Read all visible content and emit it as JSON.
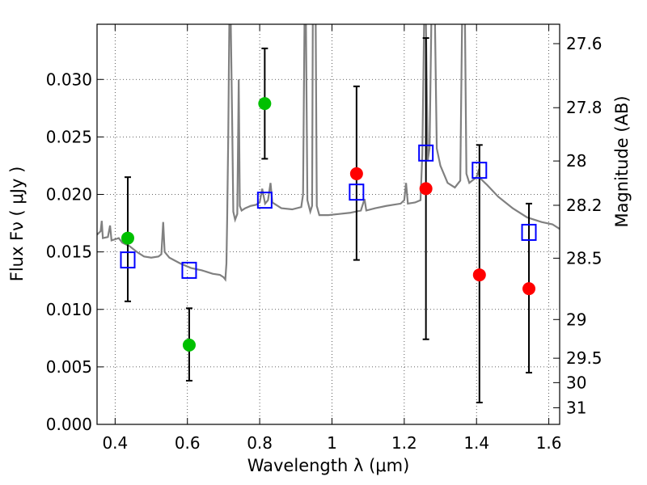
{
  "chart_data": {
    "type": "scatter",
    "xlabel": "Wavelength  λ (μm)",
    "ylabel": "Flux  Fν  ( μJy )",
    "y2label": "Magnitude (AB)",
    "xlim": [
      0.35,
      1.63
    ],
    "ylim": [
      0.0,
      0.0348
    ],
    "grid": true,
    "x_ticks": [
      {
        "value": 0.4,
        "label": "0.4"
      },
      {
        "value": 0.6,
        "label": "0.6"
      },
      {
        "value": 0.8,
        "label": "0.8"
      },
      {
        "value": 1.0,
        "label": "1"
      },
      {
        "value": 1.2,
        "label": "1.2"
      },
      {
        "value": 1.4,
        "label": "1.4"
      },
      {
        "value": 1.6,
        "label": "1.6"
      }
    ],
    "y_ticks": [
      {
        "value": 0.0,
        "label": "0.000"
      },
      {
        "value": 0.005,
        "label": "0.005"
      },
      {
        "value": 0.01,
        "label": "0.010"
      },
      {
        "value": 0.015,
        "label": "0.015"
      },
      {
        "value": 0.02,
        "label": "0.020"
      },
      {
        "value": 0.025,
        "label": "0.025"
      },
      {
        "value": 0.03,
        "label": "0.030"
      }
    ],
    "y2_ticks": [
      {
        "value": 27.6,
        "label": "27.6"
      },
      {
        "value": 27.8,
        "label": "27.8"
      },
      {
        "value": 28.0,
        "label": "28"
      },
      {
        "value": 28.2,
        "label": "28.2"
      },
      {
        "value": 28.5,
        "label": "28.5"
      },
      {
        "value": 29.0,
        "label": "29"
      },
      {
        "value": 29.5,
        "label": "29.5"
      },
      {
        "value": 30.0,
        "label": "30"
      },
      {
        "value": 31.0,
        "label": "31"
      }
    ],
    "colors": {
      "spectrum": "#808080",
      "green": "#00c000",
      "red": "#ff0000",
      "model": "#0000ff",
      "error": "#000000"
    },
    "series": [
      {
        "marker": "circle",
        "color": "green",
        "points": [
          {
            "x": 0.435,
            "y": 0.0162,
            "ylo": 0.0107,
            "yhi": 0.0215
          },
          {
            "x": 0.605,
            "y": 0.0069,
            "ylo": 0.0038,
            "yhi": 0.0101
          },
          {
            "x": 0.814,
            "y": 0.0279,
            "ylo": 0.0231,
            "yhi": 0.0327
          }
        ]
      },
      {
        "marker": "circle",
        "color": "red",
        "points": [
          {
            "x": 1.068,
            "y": 0.0218,
            "ylo": 0.0143,
            "yhi": 0.0294
          },
          {
            "x": 1.26,
            "y": 0.0205,
            "ylo": 0.0074,
            "yhi": 0.0336
          },
          {
            "x": 1.408,
            "y": 0.013,
            "ylo": 0.0019,
            "yhi": 0.0243
          },
          {
            "x": 1.545,
            "y": 0.0118,
            "ylo": 0.0045,
            "yhi": 0.0192
          }
        ]
      },
      {
        "marker": "open-square",
        "color": "model",
        "points": [
          {
            "x": 0.435,
            "y": 0.0143
          },
          {
            "x": 0.605,
            "y": 0.0134
          },
          {
            "x": 0.814,
            "y": 0.0195
          },
          {
            "x": 1.068,
            "y": 0.0202
          },
          {
            "x": 1.26,
            "y": 0.0236
          },
          {
            "x": 1.408,
            "y": 0.0221
          },
          {
            "x": 1.545,
            "y": 0.0167
          }
        ]
      }
    ],
    "spectrum": [
      [
        0.35,
        0.0165
      ],
      [
        0.36,
        0.0168
      ],
      [
        0.363,
        0.0177
      ],
      [
        0.366,
        0.0162
      ],
      [
        0.38,
        0.0163
      ],
      [
        0.386,
        0.0173
      ],
      [
        0.39,
        0.016
      ],
      [
        0.4,
        0.0161
      ],
      [
        0.41,
        0.0162
      ],
      [
        0.42,
        0.0158
      ],
      [
        0.44,
        0.0155
      ],
      [
        0.46,
        0.015
      ],
      [
        0.48,
        0.0146
      ],
      [
        0.5,
        0.0145
      ],
      [
        0.52,
        0.0146
      ],
      [
        0.528,
        0.0148
      ],
      [
        0.533,
        0.0176
      ],
      [
        0.537,
        0.015
      ],
      [
        0.55,
        0.0145
      ],
      [
        0.58,
        0.014
      ],
      [
        0.61,
        0.0136
      ],
      [
        0.64,
        0.0134
      ],
      [
        0.67,
        0.0131
      ],
      [
        0.69,
        0.013
      ],
      [
        0.7,
        0.0128
      ],
      [
        0.705,
        0.0126
      ],
      [
        0.708,
        0.014
      ],
      [
        0.71,
        0.0178
      ],
      [
        0.713,
        0.025
      ],
      [
        0.716,
        0.035
      ],
      [
        0.72,
        0.035
      ],
      [
        0.724,
        0.026
      ],
      [
        0.727,
        0.0185
      ],
      [
        0.732,
        0.0178
      ],
      [
        0.738,
        0.0183
      ],
      [
        0.742,
        0.03
      ],
      [
        0.745,
        0.019
      ],
      [
        0.75,
        0.0186
      ],
      [
        0.76,
        0.0188
      ],
      [
        0.775,
        0.019
      ],
      [
        0.79,
        0.0191
      ],
      [
        0.8,
        0.0193
      ],
      [
        0.807,
        0.0205
      ],
      [
        0.815,
        0.0192
      ],
      [
        0.823,
        0.0195
      ],
      [
        0.83,
        0.021
      ],
      [
        0.835,
        0.0193
      ],
      [
        0.86,
        0.0188
      ],
      [
        0.89,
        0.0187
      ],
      [
        0.915,
        0.0189
      ],
      [
        0.92,
        0.02
      ],
      [
        0.924,
        0.035
      ],
      [
        0.928,
        0.035
      ],
      [
        0.932,
        0.0195
      ],
      [
        0.94,
        0.0185
      ],
      [
        0.945,
        0.019
      ],
      [
        0.947,
        0.035
      ],
      [
        0.95,
        0.035
      ],
      [
        0.952,
        0.035
      ],
      [
        0.955,
        0.035
      ],
      [
        0.958,
        0.019
      ],
      [
        0.965,
        0.0182
      ],
      [
        0.99,
        0.0182
      ],
      [
        1.02,
        0.0183
      ],
      [
        1.05,
        0.0184
      ],
      [
        1.08,
        0.0186
      ],
      [
        1.09,
        0.0196
      ],
      [
        1.095,
        0.0186
      ],
      [
        1.12,
        0.0188
      ],
      [
        1.15,
        0.019
      ],
      [
        1.17,
        0.0191
      ],
      [
        1.19,
        0.0192
      ],
      [
        1.2,
        0.0195
      ],
      [
        1.205,
        0.021
      ],
      [
        1.21,
        0.0192
      ],
      [
        1.23,
        0.0193
      ],
      [
        1.245,
        0.0195
      ],
      [
        1.25,
        0.0235
      ],
      [
        1.255,
        0.035
      ],
      [
        1.26,
        0.035
      ],
      [
        1.265,
        0.023
      ],
      [
        1.27,
        0.024
      ],
      [
        1.275,
        0.035
      ],
      [
        1.285,
        0.035
      ],
      [
        1.29,
        0.024
      ],
      [
        1.3,
        0.0225
      ],
      [
        1.32,
        0.021
      ],
      [
        1.34,
        0.0206
      ],
      [
        1.355,
        0.0212
      ],
      [
        1.36,
        0.035
      ],
      [
        1.368,
        0.035
      ],
      [
        1.372,
        0.0218
      ],
      [
        1.38,
        0.021
      ],
      [
        1.4,
        0.0215
      ],
      [
        1.405,
        0.022
      ],
      [
        1.41,
        0.0214
      ],
      [
        1.43,
        0.0208
      ],
      [
        1.46,
        0.0198
      ],
      [
        1.5,
        0.0188
      ],
      [
        1.54,
        0.018
      ],
      [
        1.58,
        0.0176
      ],
      [
        1.61,
        0.0174
      ],
      [
        1.63,
        0.017
      ]
    ]
  }
}
